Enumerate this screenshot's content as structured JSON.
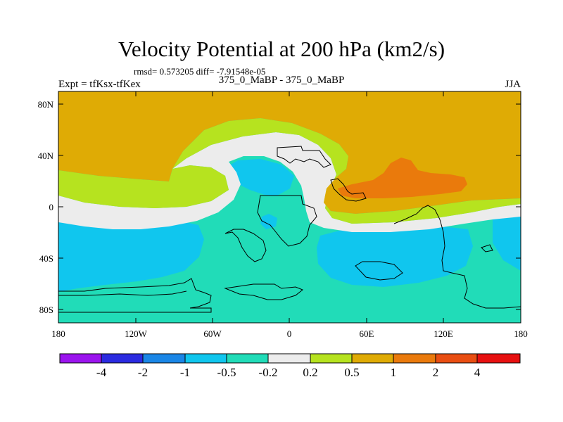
{
  "title": "Velocity Potential at 200 hPa (km2/s)",
  "stats": "rmsd= 0.573205 diff= -7.91548e-05",
  "left_label": "Expt = tfKsx-tfKex",
  "center_label": "375_0_MaBP - 375_0_MaBP",
  "right_label": "JJA",
  "map": {
    "lat_ticks": [
      "80N",
      "40N",
      "0",
      "40S",
      "80S"
    ],
    "lon_ticks": [
      "180",
      "120W",
      "60W",
      "0",
      "60E",
      "120E",
      "180"
    ]
  },
  "colorbar": {
    "labels": [
      "-4",
      "-2",
      "-1",
      "-0.5",
      "-0.2",
      "0.2",
      "0.5",
      "1",
      "2",
      "4"
    ],
    "colors": [
      "#9b14ee",
      "#2b2be0",
      "#1a86e6",
      "#10c6ee",
      "#21dcb8",
      "#ececec",
      "#b6e31f",
      "#dfab05",
      "#ea7a0c",
      "#e94e12",
      "#e71010"
    ]
  },
  "chart_data": {
    "type": "filled-contour-map",
    "title": "Velocity Potential at 200 hPa (km2/s)",
    "variable": "200 hPa velocity potential difference",
    "units": "km2/s",
    "season": "JJA",
    "xlim": [
      -180,
      180
    ],
    "ylim": [
      -90,
      90
    ],
    "levels": [
      -4,
      -2,
      -1,
      -0.5,
      -0.2,
      0.2,
      0.5,
      1,
      2,
      4
    ]
  }
}
